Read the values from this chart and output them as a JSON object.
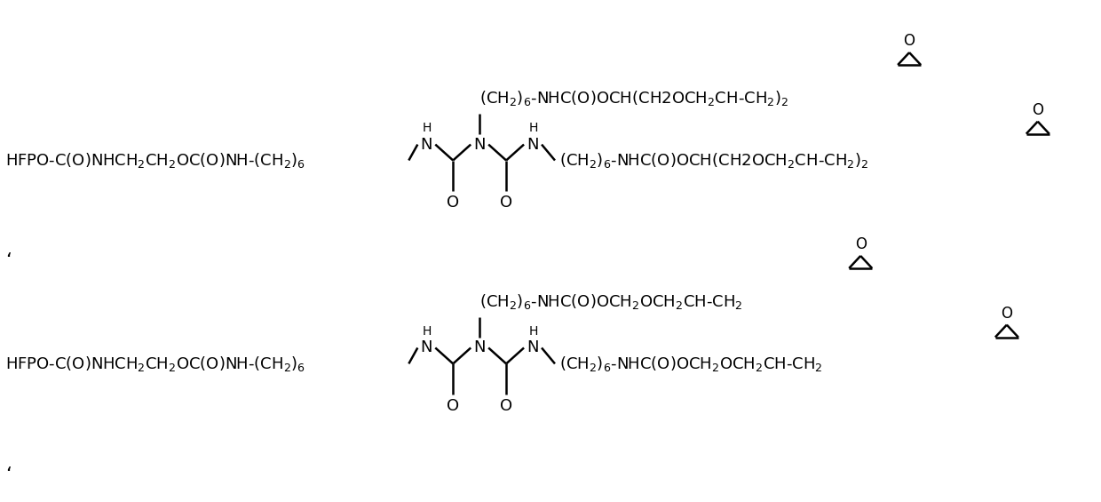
{
  "background": "#ffffff",
  "figsize": [
    12.4,
    5.65
  ],
  "dpi": 100,
  "font_size_main": 13,
  "font_size_h": 10,
  "line_width": 1.8,
  "text_color": "#000000",
  "s1_main": "HFPO-C(O)NHCH$_2$CH$_2$OC(O)NH-(CH$_2$)$_6$",
  "s1_top_chain": "(CH$_2$)$_6$-NHC(O)OCH(CH2OCH$_2$CH-CH$_2$)$_2$",
  "s1_right_chain": "(CH$_2$)$_6$-NHC(O)OCH(CH2OCH$_2$CH-CH$_2$)$_2$",
  "s2_main": "HFPO-C(O)NHCH$_2$CH$_2$OC(O)NH-(CH$_2$)$_6$",
  "s2_top_chain": "(CH$_2$)$_6$-NHC(O)OCH$_2$OCH$_2$CH-CH$_2$",
  "s2_right_chain": "(CH$_2$)$_6$-NHC(O)OCH$_2$OCH$_2$CH-CH$_2$",
  "tick_char": "ʻ"
}
